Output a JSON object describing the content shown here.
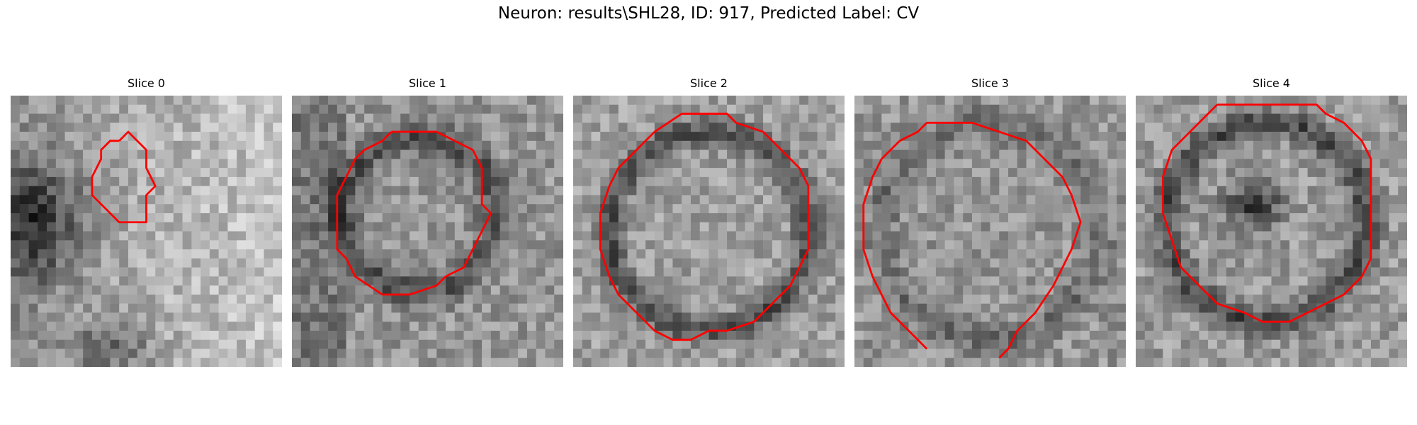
{
  "title": "Neuron: results\\SHL28, ID: 917, Predicted Label: CV",
  "contour_color": "#ff0000",
  "panels": [
    {
      "label": "Slice 0"
    },
    {
      "label": "Slice 1"
    },
    {
      "label": "Slice 2"
    },
    {
      "label": "Slice 3"
    },
    {
      "label": "Slice 4"
    }
  ]
}
